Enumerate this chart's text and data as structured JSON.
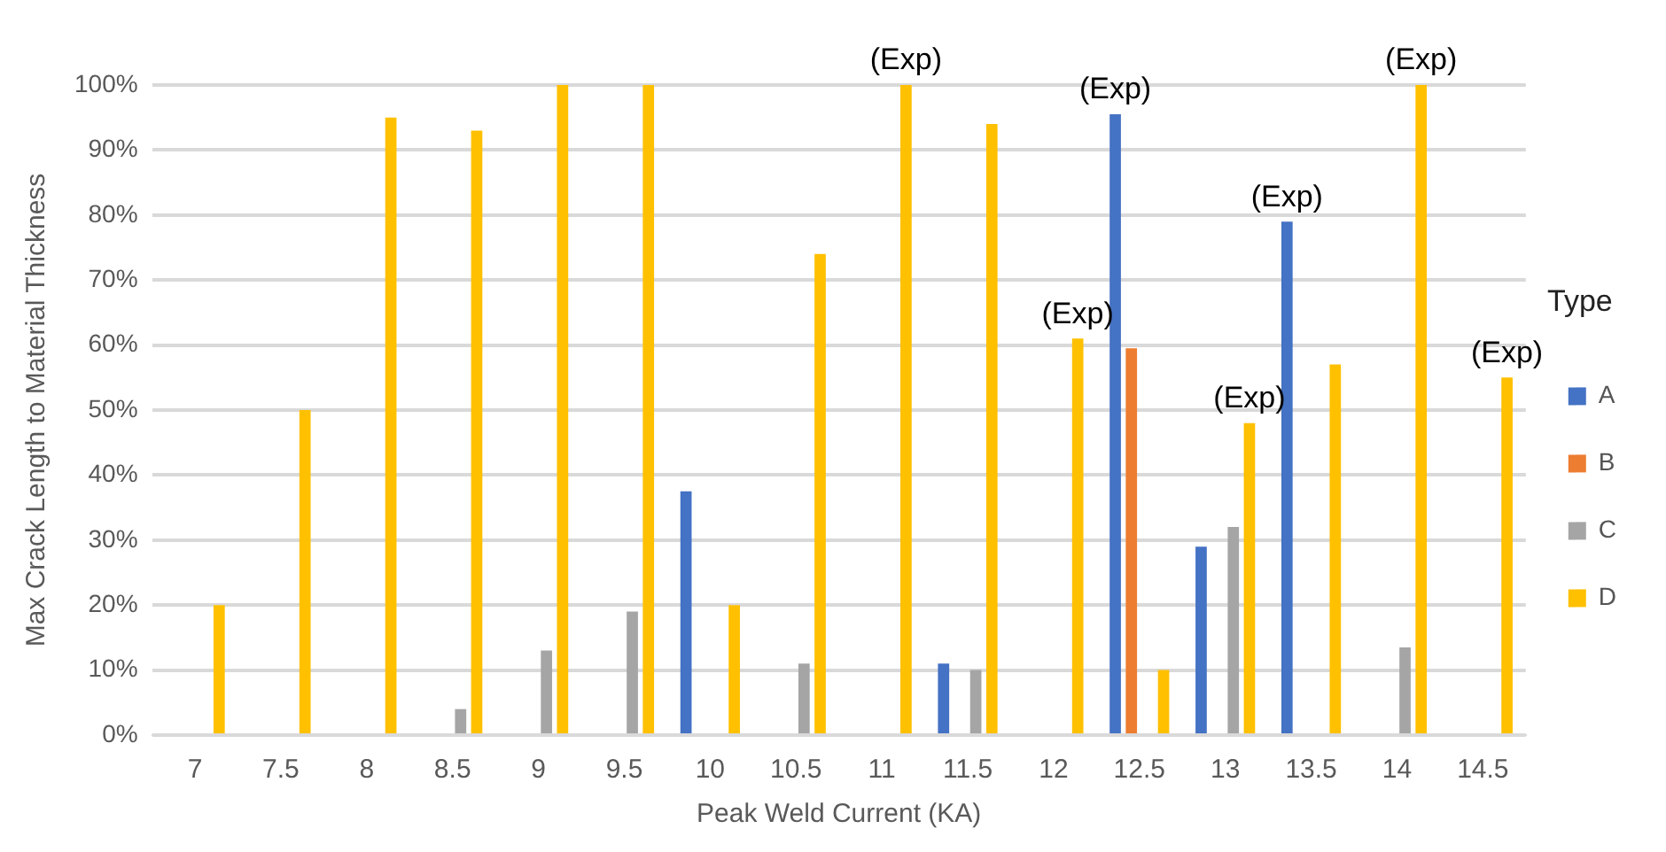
{
  "chart_data": {
    "type": "bar",
    "xlabel": "Peak Weld Current (KA)",
    "ylabel": "Max Crack Length to Material Thickness",
    "legend_title": "Type",
    "legend": "right",
    "grid": "y",
    "categories": [
      "7",
      "7.5",
      "8",
      "8.5",
      "9",
      "9.5",
      "10",
      "10.5",
      "11",
      "11.5",
      "12",
      "12.5",
      "13",
      "13.5",
      "14",
      "14.5"
    ],
    "ylim": [
      0,
      100
    ],
    "yticks": [
      {
        "value": 0,
        "label": "0%"
      },
      {
        "value": 10,
        "label": "10%"
      },
      {
        "value": 20,
        "label": "20%"
      },
      {
        "value": 30,
        "label": "30%"
      },
      {
        "value": 40,
        "label": "40%"
      },
      {
        "value": 50,
        "label": "50%"
      },
      {
        "value": 60,
        "label": "60%"
      },
      {
        "value": 70,
        "label": "70%"
      },
      {
        "value": 80,
        "label": "80%"
      },
      {
        "value": 90,
        "label": "90%"
      },
      {
        "value": 100,
        "label": "100%"
      }
    ],
    "series": [
      {
        "name": "A",
        "color": "#4472c4",
        "values": [
          null,
          null,
          null,
          null,
          null,
          null,
          37.5,
          null,
          null,
          11,
          null,
          95.5,
          29,
          79,
          null,
          null
        ],
        "value_labels": [
          null,
          null,
          null,
          null,
          null,
          null,
          null,
          null,
          null,
          null,
          null,
          "(Exp)",
          null,
          "(Exp)",
          null,
          null
        ]
      },
      {
        "name": "B",
        "color": "#ed7d31",
        "values": [
          null,
          null,
          null,
          null,
          null,
          null,
          null,
          null,
          null,
          null,
          null,
          59.5,
          null,
          null,
          null,
          null
        ]
      },
      {
        "name": "C",
        "color": "#a5a5a5",
        "values": [
          null,
          null,
          null,
          4,
          13,
          19,
          null,
          11,
          null,
          10,
          null,
          null,
          32,
          null,
          13.5,
          null
        ]
      },
      {
        "name": "D",
        "color": "#ffc000",
        "values": [
          20,
          50,
          95,
          93,
          100,
          100,
          20,
          74,
          100,
          94,
          61,
          10,
          48,
          57,
          100,
          55
        ],
        "value_labels": [
          null,
          null,
          null,
          null,
          null,
          null,
          null,
          null,
          "(Exp)",
          null,
          "(Exp)",
          null,
          "(Exp)",
          null,
          "(Exp)",
          "(Exp)"
        ]
      }
    ]
  }
}
